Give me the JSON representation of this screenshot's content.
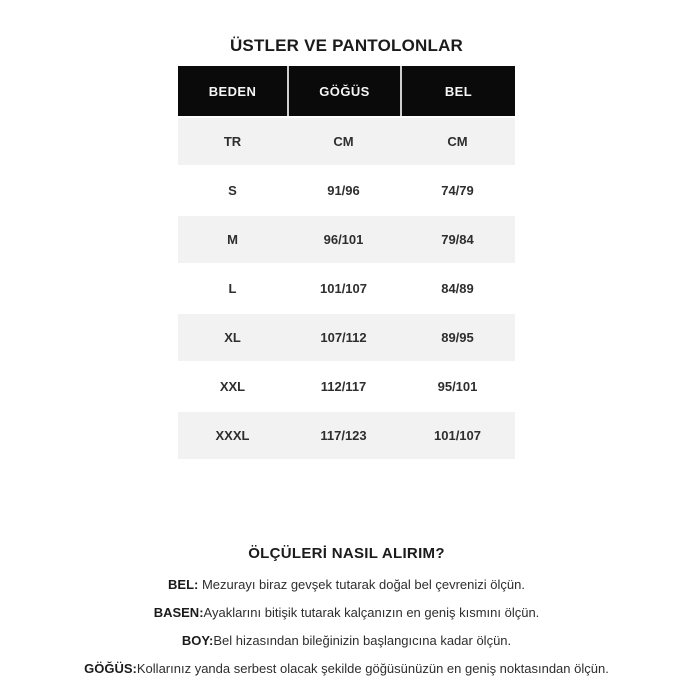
{
  "page": {
    "title": "ÜSTLER VE PANTOLONLAR"
  },
  "table": {
    "headers": [
      "BEDEN",
      "GÖĞÜS",
      "BEL"
    ],
    "unit_row": [
      "TR",
      "CM",
      "CM"
    ],
    "rows": [
      [
        "S",
        "91/96",
        "74/79"
      ],
      [
        "M",
        "96/101",
        "79/84"
      ],
      [
        "L",
        "101/107",
        "84/89"
      ],
      [
        "XL",
        "107/112",
        "89/95"
      ],
      [
        "XXL",
        "112/117",
        "95/101"
      ],
      [
        "XXXL",
        "117/123",
        "101/107"
      ]
    ]
  },
  "measure_guide": {
    "heading": "ÖLÇÜLERİ NASIL ALIRIM?",
    "items": [
      {
        "label": "BEL:",
        "text": " Mezurayı biraz gevşek tutarak doğal bel çevrenizi ölçün."
      },
      {
        "label": "BASEN:",
        "text": "Ayaklarını bitişik tutarak kalçanızın en geniş kısmını ölçün."
      },
      {
        "label": "BOY:",
        "text": "Bel hizasından bileğinizin başlangıcına kadar ölçün."
      },
      {
        "label": "GÖĞÜS:",
        "text": "Kollarınız yanda serbest olacak şekilde göğüsünüzün en geniş noktasından ölçün."
      }
    ]
  },
  "colors": {
    "header_bg": "#0a0a0a",
    "header_text": "#f5f5f5",
    "stripe_bg": "#f2f2f2",
    "body_text": "#2e2e2e",
    "separator": "#cfcfcf"
  }
}
